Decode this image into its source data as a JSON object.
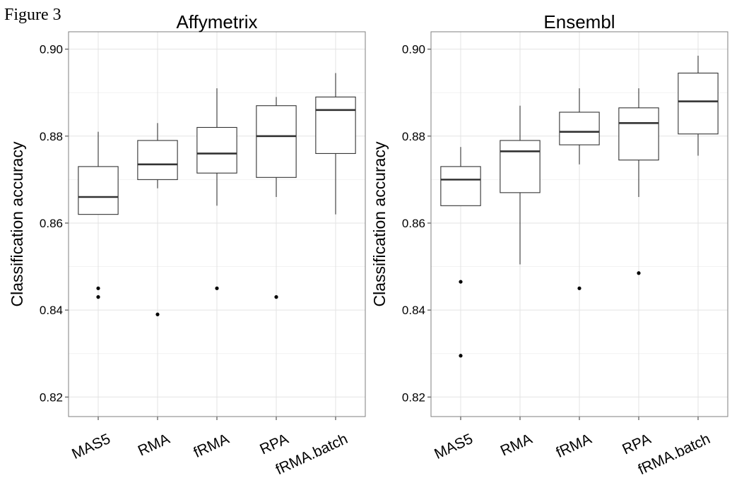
{
  "figure_label": "Figure 3",
  "chart_data": [
    {
      "type": "box",
      "title": "Affymetrix",
      "xlabel": "",
      "ylabel": "Classification accuracy",
      "ylim": [
        0.8155,
        0.904
      ],
      "yticks": [
        0.82,
        0.84,
        0.86,
        0.88,
        0.9
      ],
      "ytick_labels": [
        "0.82",
        "0.84",
        "0.86",
        "0.88",
        "0.90"
      ],
      "grid": true,
      "categories": [
        "MAS5",
        "RMA",
        "fRMA",
        "RPA",
        "fRMA.batch"
      ],
      "boxes": [
        {
          "category": "MAS5",
          "whisker_low": 0.862,
          "q1": 0.862,
          "median": 0.866,
          "q3": 0.873,
          "whisker_high": 0.881,
          "outliers": [
            0.845,
            0.843
          ]
        },
        {
          "category": "RMA",
          "whisker_low": 0.868,
          "q1": 0.87,
          "median": 0.8735,
          "q3": 0.879,
          "whisker_high": 0.883,
          "outliers": [
            0.839
          ]
        },
        {
          "category": "fRMA",
          "whisker_low": 0.864,
          "q1": 0.8715,
          "median": 0.876,
          "q3": 0.882,
          "whisker_high": 0.891,
          "outliers": [
            0.845
          ]
        },
        {
          "category": "RPA",
          "whisker_low": 0.866,
          "q1": 0.8705,
          "median": 0.88,
          "q3": 0.887,
          "whisker_high": 0.889,
          "outliers": [
            0.843
          ]
        },
        {
          "category": "fRMA.batch",
          "whisker_low": 0.862,
          "q1": 0.876,
          "median": 0.886,
          "q3": 0.889,
          "whisker_high": 0.8945,
          "outliers": []
        }
      ]
    },
    {
      "type": "box",
      "title": "Ensembl",
      "xlabel": "",
      "ylabel": "Classification accuracy",
      "ylim": [
        0.8155,
        0.904
      ],
      "yticks": [
        0.82,
        0.84,
        0.86,
        0.88,
        0.9
      ],
      "ytick_labels": [
        "0.82",
        "0.84",
        "0.86",
        "0.88",
        "0.90"
      ],
      "grid": true,
      "categories": [
        "MAS5",
        "RMA",
        "fRMA",
        "RPA",
        "fRMA.batch"
      ],
      "boxes": [
        {
          "category": "MAS5",
          "whisker_low": 0.864,
          "q1": 0.864,
          "median": 0.87,
          "q3": 0.873,
          "whisker_high": 0.8775,
          "outliers": [
            0.8465,
            0.8295
          ]
        },
        {
          "category": "RMA",
          "whisker_low": 0.8505,
          "q1": 0.867,
          "median": 0.8765,
          "q3": 0.879,
          "whisker_high": 0.887,
          "outliers": []
        },
        {
          "category": "fRMA",
          "whisker_low": 0.8735,
          "q1": 0.878,
          "median": 0.881,
          "q3": 0.8855,
          "whisker_high": 0.891,
          "outliers": [
            0.845
          ]
        },
        {
          "category": "RPA",
          "whisker_low": 0.866,
          "q1": 0.8745,
          "median": 0.883,
          "q3": 0.8865,
          "whisker_high": 0.891,
          "outliers": [
            0.8485
          ]
        },
        {
          "category": "fRMA.batch",
          "whisker_low": 0.8755,
          "q1": 0.8805,
          "median": 0.888,
          "q3": 0.8945,
          "whisker_high": 0.8985,
          "outliers": []
        }
      ]
    }
  ]
}
